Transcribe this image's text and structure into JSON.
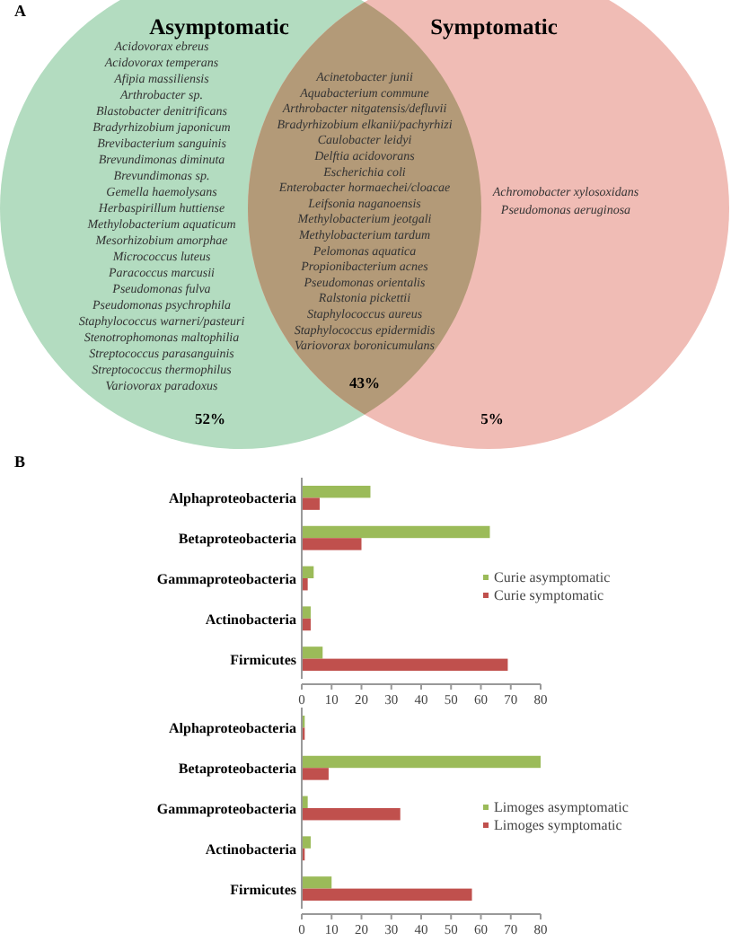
{
  "chart_data": [
    {
      "type": "other",
      "title": "A",
      "categories": [
        "Asymptomatic",
        null,
        "Symptomatic"
      ],
      "colors": [
        "#b3dcc0",
        "#b39a78",
        "#f0bcb5"
      ],
      "annotations": [
        "Acidovorax ebreus\nAcidovorax temperans\nAfipia massiliensis\nArthrobacter sp.\nBlastobacter denitrificans\nBradyrhizobium japonicum\nBrevibacterium sanguinis\nBrevundimonas diminuta\nBrevundimonas sp.\nGemella haemolysans\nHerbaspirillum huttiense\nMethylobacterium aquaticum\nMesorhizobium amorphae\nMicrococcus luteus\nParacoccus marcusii\nPseudomonas fulva\nPseudomonas psychrophila\nStaphylococcus warneri/pasteuri\nStenotrophomonas maltophilia\nStreptococcus parasanguinis\nStreptococcus thermophilus\nVariovorax paradoxus",
        "Acinetobacter junii\nAquabacterium commune\nArthrobacter nitgatensis/defluvii\nBradyrhizobium elkanii/pachyrhizi\nCaulobacter leidyi\nDelftia acidovorans\nEscherichia coli\nEnterobacter hormaechei/cloacae\nLeifsonia naganoensis\nMethylobacterium jeotgali\nMethylobacterium tardum\nPelomonas aquatica\nPropionibacterium acnes\nPseudomonas orientalis\nRalstonia pickettii\nStaphylococcus aureus\nStaphylococcus epidermidis\nVariovorax boronicumulans",
        "Achromobacter xylosoxidans\nPseudomonas aeruginosa",
        "52%",
        "43%",
        "5%"
      ]
    },
    {
      "type": "bar",
      "annotations": [
        "B"
      ],
      "orientation": "horizontal",
      "categories": [
        "Alphaproteobacteria",
        "Betaproteobacteria",
        "Gammaproteobacteria",
        "Actinobacteria",
        "Firmicutes"
      ],
      "xlim": [
        0,
        80
      ],
      "xticks": [
        0,
        10,
        20,
        30,
        40,
        50,
        60,
        70,
        80
      ],
      "legend": "right",
      "series": [
        {
          "name": "Curie asymptomatic",
          "color": "#9bbb59",
          "values": [
            23,
            63,
            4,
            3,
            7
          ]
        },
        {
          "name": "Curie symptomatic",
          "color": "#c0504d",
          "values": [
            6,
            20,
            2,
            3,
            69
          ]
        }
      ]
    },
    {
      "type": "bar",
      "orientation": "horizontal",
      "categories": [
        "Alphaproteobacteria",
        "Betaproteobacteria",
        "Gammaproteobacteria",
        "Actinobacteria",
        "Firmicutes"
      ],
      "xlim": [
        0,
        80
      ],
      "xticks": [
        0,
        10,
        20,
        30,
        40,
        50,
        60,
        70,
        80
      ],
      "legend": "right",
      "series": [
        {
          "name": "Limoges asymptomatic",
          "color": "#9bbb59",
          "values": [
            1,
            80,
            2,
            3,
            10
          ]
        },
        {
          "name": "Limoges symptomatic",
          "color": "#c0504d",
          "values": [
            1,
            9,
            33,
            1,
            57
          ]
        }
      ]
    }
  ]
}
